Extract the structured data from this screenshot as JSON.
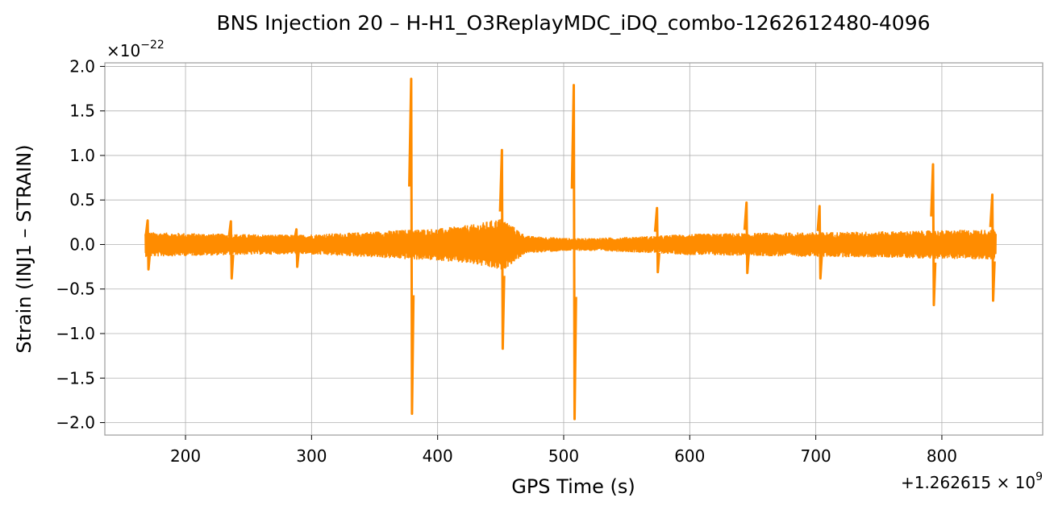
{
  "chart_data": {
    "type": "line",
    "title": "BNS Injection 20 – H-H1_O3ReplayMDC_iDQ_combo-1262612480-4096",
    "xlabel": "GPS Time (s)",
    "ylabel": "Strain (INJ1 – STRAIN)",
    "x_offset_label": "+1.262615 × 10",
    "x_offset_exponent": "9",
    "y_multiplier_label": "×10",
    "y_multiplier_exponent": "−22",
    "xlim": [
      136,
      880
    ],
    "ylim": [
      -2.14,
      2.04
    ],
    "x_ticks": [
      200,
      300,
      400,
      500,
      600,
      700,
      800
    ],
    "x_tick_labels": [
      "200",
      "300",
      "400",
      "500",
      "600",
      "700",
      "800"
    ],
    "y_ticks": [
      -2.0,
      -1.5,
      -1.0,
      -0.5,
      0.0,
      0.5,
      1.0,
      1.5,
      2.0
    ],
    "y_tick_labels": [
      "−2.0",
      "−1.5",
      "−1.0",
      "−0.5",
      "0.0",
      "0.5",
      "1.0",
      "1.5",
      "2.0"
    ],
    "grid": true,
    "line_color": "#ff8c00",
    "x_range": [
      168,
      843
    ],
    "noise_envelope": {
      "x": [
        168,
        200,
        236,
        290,
        340,
        378,
        400,
        430,
        451,
        470,
        508,
        540,
        574,
        600,
        645,
        700,
        760,
        793,
        843
      ],
      "amplitude": [
        0.14,
        0.13,
        0.12,
        0.11,
        0.14,
        0.17,
        0.18,
        0.23,
        0.3,
        0.1,
        0.07,
        0.08,
        0.1,
        0.12,
        0.13,
        0.14,
        0.15,
        0.16,
        0.17
      ]
    },
    "spikes": [
      {
        "x": 170,
        "max": 0.27,
        "min": -0.28
      },
      {
        "x": 236,
        "max": 0.26,
        "min": -0.38
      },
      {
        "x": 288,
        "max": 0.17,
        "min": -0.25
      },
      {
        "x": 379,
        "max": 1.86,
        "min": -1.9
      },
      {
        "x": 451,
        "max": 1.06,
        "min": -1.17
      },
      {
        "x": 508,
        "max": 1.79,
        "min": -1.96
      },
      {
        "x": 574,
        "max": 0.41,
        "min": -0.31
      },
      {
        "x": 645,
        "max": 0.47,
        "min": -0.32
      },
      {
        "x": 703,
        "max": 0.43,
        "min": -0.38
      },
      {
        "x": 793,
        "max": 0.9,
        "min": -0.68
      },
      {
        "x": 840,
        "max": 0.56,
        "min": -0.63
      }
    ]
  }
}
